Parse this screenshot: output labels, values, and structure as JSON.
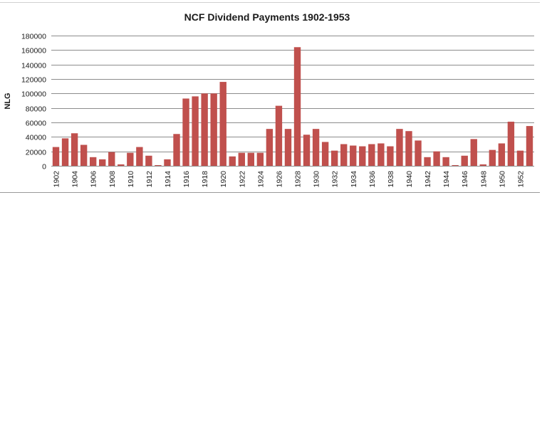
{
  "chart_data": {
    "type": "bar",
    "title": "NCF Dividend Payments 1902-1953",
    "xlabel": "",
    "ylabel": "NLG",
    "ylim": [
      0,
      180000
    ],
    "y_ticks": [
      "0",
      "20000",
      "40000",
      "60000",
      "80000",
      "100000",
      "120000",
      "140000",
      "160000",
      "180000"
    ],
    "grid": true,
    "bar_color": "#c0504d",
    "categories": [
      "1902",
      "1903",
      "1904",
      "1905",
      "1906",
      "1907",
      "1908",
      "1909",
      "1910",
      "1911",
      "1912",
      "1913",
      "1914",
      "1915",
      "1916",
      "1917",
      "1918",
      "1919",
      "1920",
      "1921",
      "1922",
      "1923",
      "1924",
      "1925",
      "1926",
      "1927",
      "1928",
      "1929",
      "1930",
      "1931",
      "1932",
      "1933",
      "1934",
      "1935",
      "1936",
      "1937",
      "1938",
      "1939",
      "1940",
      "1941",
      "1942",
      "1943",
      "1944",
      "1945",
      "1946",
      "1947",
      "1948",
      "1949",
      "1950",
      "1951",
      "1952",
      "1953"
    ],
    "x_tick_labels": [
      "1902",
      "1904",
      "1906",
      "1908",
      "1910",
      "1912",
      "1914",
      "1916",
      "1918",
      "1920",
      "1922",
      "1924",
      "1926",
      "1928",
      "1930",
      "1932",
      "1934",
      "1936",
      "1938",
      "1940",
      "1942",
      "1944",
      "1946",
      "1948",
      "1950",
      "1952"
    ],
    "values": [
      26000,
      38000,
      45000,
      29000,
      12000,
      9000,
      19000,
      2000,
      18000,
      26000,
      14000,
      1000,
      9000,
      44000,
      93000,
      96000,
      100000,
      100000,
      116000,
      13000,
      18000,
      18000,
      18000,
      51000,
      83000,
      51000,
      164000,
      43000,
      51000,
      33000,
      21000,
      30000,
      28000,
      27000,
      30000,
      31000,
      27000,
      51000,
      48000,
      35000,
      12000,
      20000,
      12000,
      1000,
      14000,
      37000,
      2000,
      22000,
      31000,
      61000,
      21000,
      55000
    ]
  }
}
